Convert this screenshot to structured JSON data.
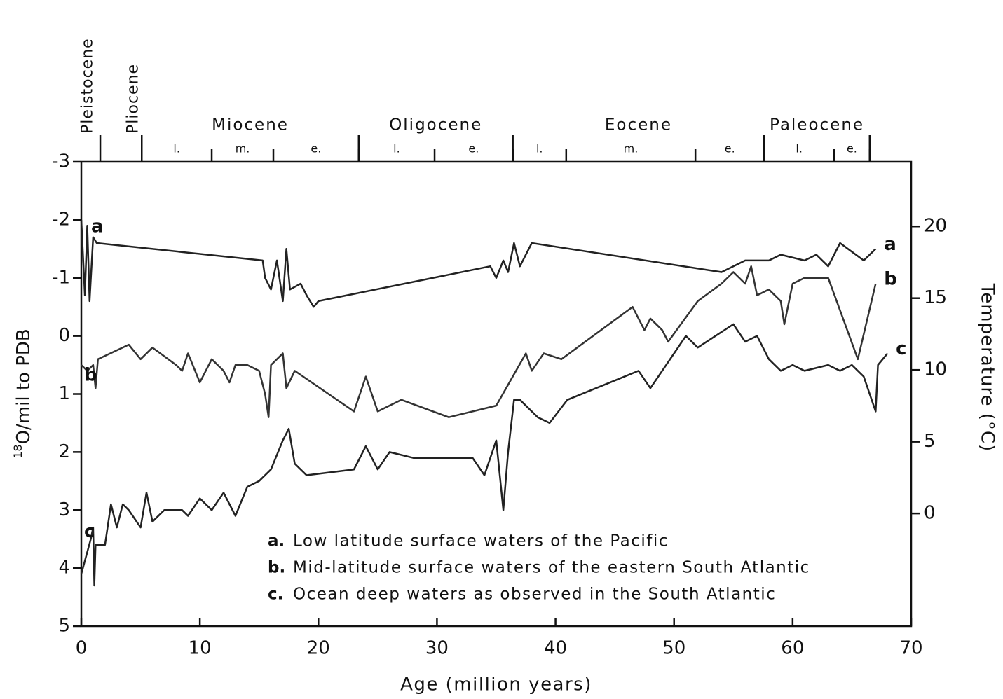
{
  "chart_data": {
    "type": "line",
    "xlabel": "Age (million years)",
    "ylabel_sup": "18",
    "ylabel": "O/mil to PDB",
    "y2label": "Temperature (°C)",
    "xlim": [
      0,
      70
    ],
    "xticks": [
      0,
      10,
      20,
      30,
      40,
      50,
      60,
      70
    ],
    "ylim": [
      -3,
      5
    ],
    "yticks": [
      -3,
      -2,
      -1,
      0,
      1,
      2,
      3,
      4,
      5
    ],
    "y2lim": [
      24.5,
      -7.85
    ],
    "y2ticks": [
      0,
      5,
      10,
      15,
      20
    ],
    "epochs": [
      {
        "name": "Pleistocene",
        "start": 0,
        "end": 1.6
      },
      {
        "name": "Pliocene",
        "start": 1.6,
        "end": 5.1
      },
      {
        "name": "Miocene",
        "start": 5.1,
        "end": 23.4
      },
      {
        "name": "Oligocene",
        "start": 23.4,
        "end": 36.4
      },
      {
        "name": "Eocene",
        "start": 36.4,
        "end": 57.6
      },
      {
        "name": "Paleocene",
        "start": 57.6,
        "end": 66.5
      }
    ],
    "subdivisions": [
      {
        "name": "l.",
        "start": 5.1,
        "end": 11
      },
      {
        "name": "m.",
        "start": 11,
        "end": 16.2
      },
      {
        "name": "e.",
        "start": 16.2,
        "end": 23.4
      },
      {
        "name": "l.",
        "start": 23.4,
        "end": 29.8
      },
      {
        "name": "e.",
        "start": 29.8,
        "end": 36.4
      },
      {
        "name": "l.",
        "start": 36.4,
        "end": 40.9
      },
      {
        "name": "m.",
        "start": 40.9,
        "end": 51.8
      },
      {
        "name": "e.",
        "start": 51.8,
        "end": 57.6
      },
      {
        "name": "l.",
        "start": 57.6,
        "end": 63.5
      },
      {
        "name": "e.",
        "start": 63.5,
        "end": 66.5
      }
    ],
    "series": [
      {
        "label": "a",
        "key": "a.",
        "name": "Low latitude surface waters of the Pacific",
        "color": "#222",
        "x": [
          0,
          0.3,
          0.5,
          0.7,
          1,
          1.3,
          15.3,
          15.5,
          16,
          16.5,
          17,
          17.3,
          17.6,
          18.5,
          19,
          19.6,
          20,
          34.5,
          35,
          35.6,
          36,
          36.5,
          37,
          38,
          54,
          56,
          58,
          59,
          61,
          62,
          63,
          64,
          66,
          67
        ],
        "values": [
          -2.0,
          -0.7,
          -1.9,
          -0.6,
          -1.7,
          -1.6,
          -1.3,
          -1.0,
          -0.8,
          -1.3,
          -0.6,
          -1.5,
          -0.8,
          -0.9,
          -0.7,
          -0.5,
          -0.6,
          -1.2,
          -1.0,
          -1.3,
          -1.1,
          -1.6,
          -1.2,
          -1.6,
          -1.1,
          -1.3,
          -1.3,
          -1.4,
          -1.3,
          -1.4,
          -1.2,
          -1.6,
          -1.3,
          -1.5
        ]
      },
      {
        "label": "b",
        "key": "b.",
        "name": "Mid-latitude surface waters of the eastern South Atlantic",
        "color": "#333",
        "x": [
          0,
          0.5,
          1,
          1.2,
          1.4,
          4,
          5,
          6,
          8,
          8.5,
          9,
          10,
          11,
          12,
          12.5,
          13,
          14,
          15,
          15.5,
          15.8,
          16,
          17,
          17.3,
          18,
          23,
          23.5,
          24,
          25,
          27,
          31,
          35,
          37.5,
          38,
          39,
          40.5,
          46.5,
          47.5,
          48,
          49,
          49.5,
          52,
          54,
          55,
          56,
          56.5,
          57,
          58,
          59,
          59.3,
          60,
          61,
          63,
          65.5,
          67
        ],
        "values": [
          0.5,
          0.6,
          0.5,
          0.9,
          0.4,
          0.15,
          0.4,
          0.2,
          0.5,
          0.6,
          0.3,
          0.8,
          0.4,
          0.6,
          0.8,
          0.5,
          0.5,
          0.6,
          1.0,
          1.4,
          0.5,
          0.3,
          0.9,
          0.6,
          1.3,
          1.0,
          0.7,
          1.3,
          1.1,
          1.4,
          1.2,
          0.3,
          0.6,
          0.3,
          0.4,
          -0.5,
          -0.1,
          -0.3,
          -0.1,
          0.1,
          -0.6,
          -0.9,
          -1.1,
          -0.9,
          -1.2,
          -0.7,
          -0.8,
          -0.6,
          -0.2,
          -0.9,
          -1.0,
          -1.0,
          0.4,
          -0.9
        ]
      },
      {
        "label": "c",
        "key": "c.",
        "name": "Ocean deep waters as observed in the South Atlantic",
        "color": "#222",
        "x": [
          0,
          0.8,
          1,
          1.1,
          1.2,
          2,
          2.5,
          3,
          3.5,
          4,
          5,
          5.5,
          6,
          7,
          8.5,
          9,
          10,
          11,
          12,
          13,
          14,
          15,
          16,
          17,
          17.5,
          18,
          19,
          23,
          24,
          25,
          26,
          28,
          33,
          34,
          35,
          35.6,
          36,
          36.5,
          37,
          38.5,
          39.5,
          41,
          47,
          48,
          50,
          51,
          52,
          55,
          56,
          57,
          58,
          59,
          60,
          61,
          63,
          64,
          65,
          66,
          67,
          67.2,
          68
        ],
        "values": [
          4.1,
          3.5,
          3.3,
          4.3,
          3.6,
          3.6,
          2.9,
          3.3,
          2.9,
          3.0,
          3.3,
          2.7,
          3.2,
          3.0,
          3.0,
          3.1,
          2.8,
          3.0,
          2.7,
          3.1,
          2.6,
          2.5,
          2.3,
          1.8,
          1.6,
          2.2,
          2.4,
          2.3,
          1.9,
          2.3,
          2.0,
          2.1,
          2.1,
          2.4,
          1.8,
          3.0,
          2.0,
          1.1,
          1.1,
          1.4,
          1.5,
          1.1,
          0.6,
          0.9,
          0.3,
          0.0,
          0.2,
          -0.2,
          0.1,
          0.0,
          0.4,
          0.6,
          0.5,
          0.6,
          0.5,
          0.6,
          0.5,
          0.7,
          1.3,
          0.5,
          0.3
        ]
      }
    ]
  }
}
